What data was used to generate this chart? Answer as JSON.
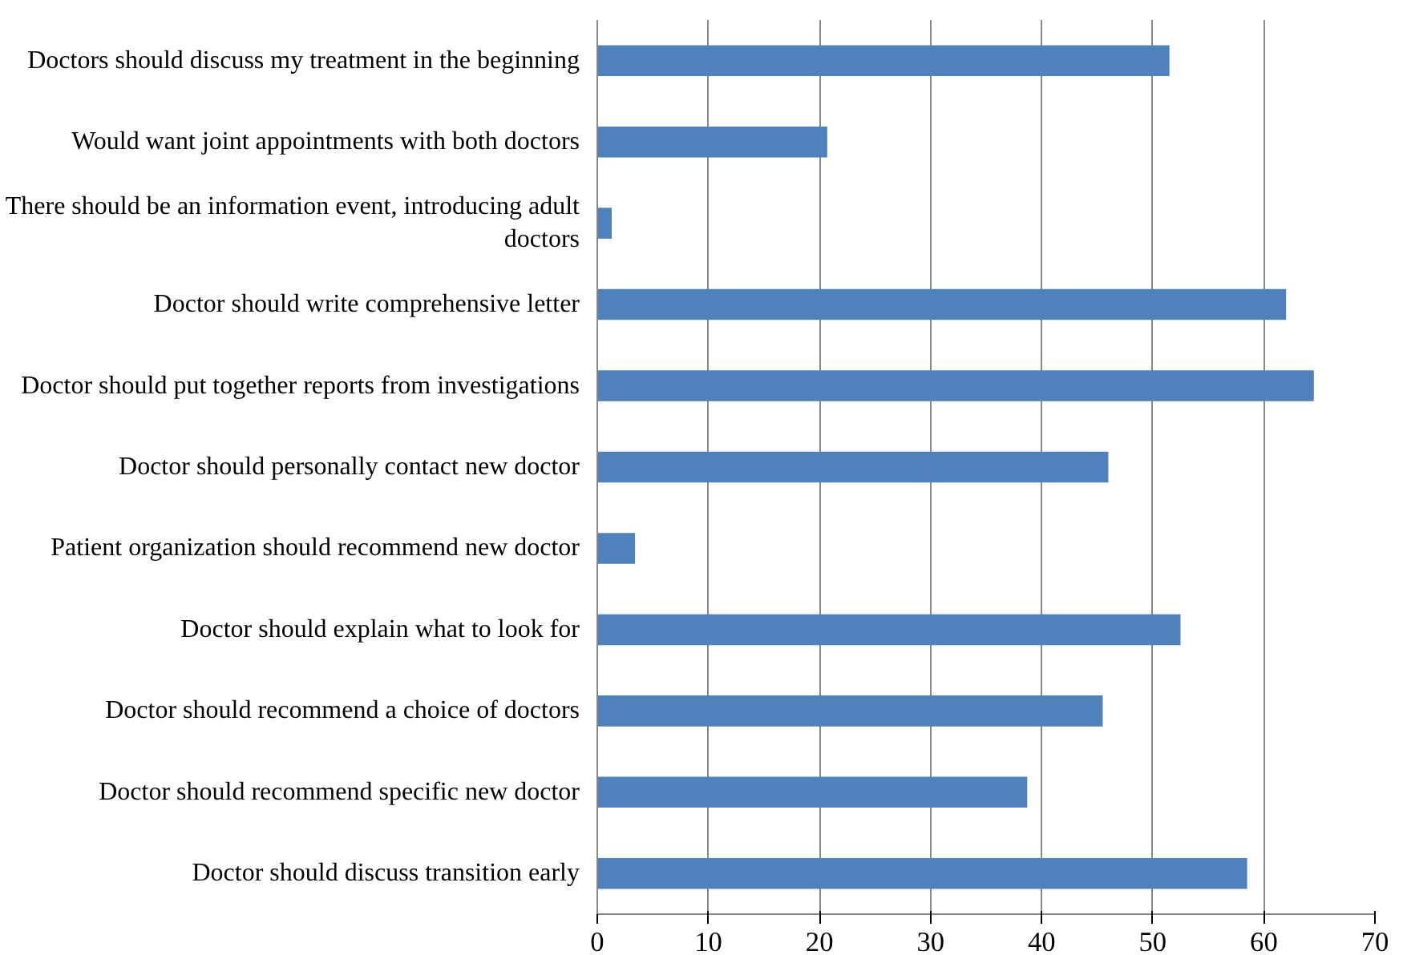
{
  "chart_data": {
    "type": "bar",
    "orientation": "horizontal",
    "categories": [
      "Doctors should discuss my treatment in the beginning",
      "Would want joint appointments with both doctors",
      "There should be an information event, introducing adult doctors",
      "Doctor should write comprehensive letter",
      "Doctor should put together reports from investigations",
      "Doctor should personally contact new doctor",
      "Patient organization should recommend new doctor",
      "Doctor should explain what to look for",
      "Doctor should recommend a choice of doctors",
      "Doctor should recommend specific new doctor",
      "Doctor should discuss transition early"
    ],
    "values": [
      51.5,
      20.7,
      1.3,
      62,
      64.5,
      46,
      3.4,
      52.5,
      45.5,
      38.7,
      58.5
    ],
    "color": "#4f81bd",
    "xlim": [
      0,
      70
    ],
    "xticks": [
      0,
      10,
      20,
      30,
      40,
      50,
      60,
      70
    ],
    "grid": "x"
  }
}
